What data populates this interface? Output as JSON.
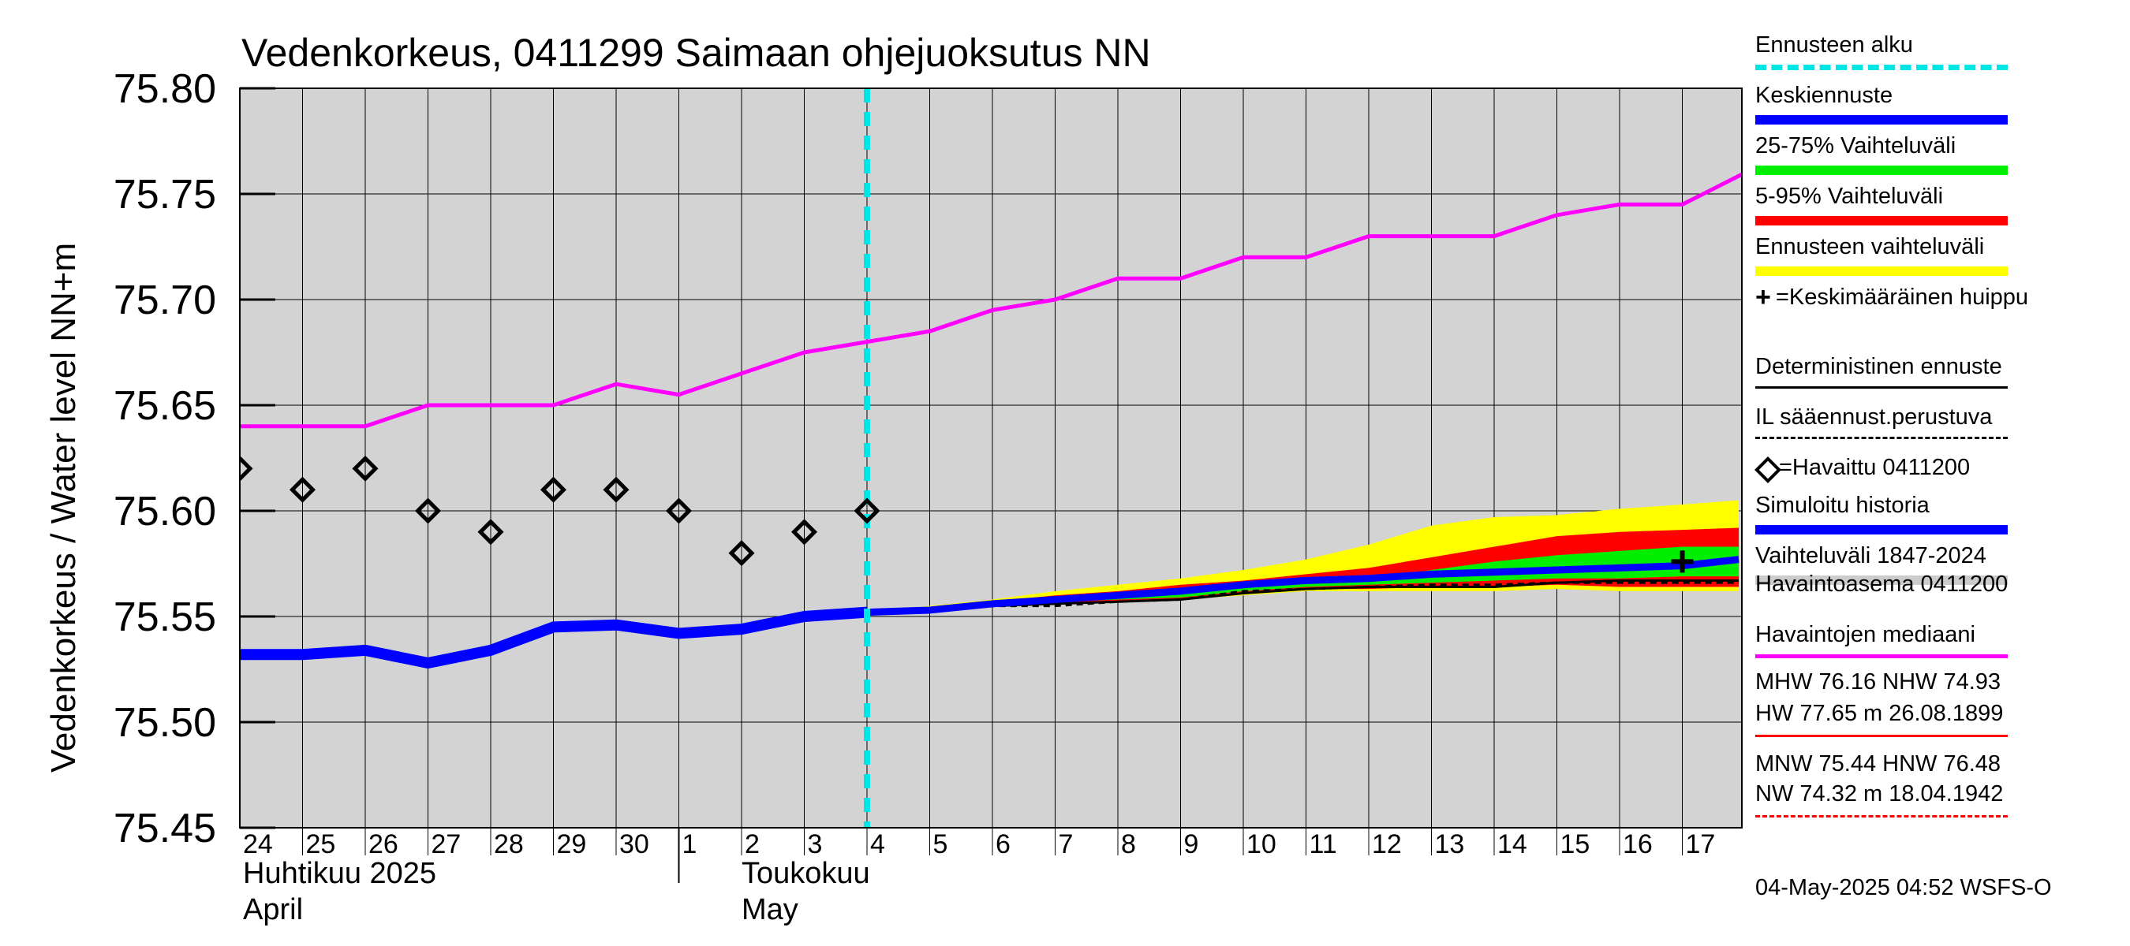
{
  "chart_data": {
    "type": "line",
    "title": "Vedenkorkeus, 0411299 Saimaan ohjejuoksutus NN",
    "ylabel": "Vedenkorkeus / Water level   NN+m",
    "ylim": [
      75.45,
      75.8
    ],
    "yticks": [
      "75.45",
      "75.50",
      "75.55",
      "75.60",
      "75.65",
      "75.70",
      "75.75",
      "75.80"
    ],
    "ytick_values": [
      75.45,
      75.5,
      75.55,
      75.6,
      75.65,
      75.7,
      75.75,
      75.8
    ],
    "x_day_labels": [
      "24",
      "25",
      "26",
      "27",
      "28",
      "29",
      "30",
      "1",
      "2",
      "3",
      "4",
      "5",
      "6",
      "7",
      "8",
      "9",
      "10",
      "11",
      "12",
      "13",
      "14",
      "15",
      "16",
      "17"
    ],
    "month_labels": [
      {
        "fi": "Huhtikuu  2025",
        "en": "April"
      },
      {
        "fi": "Toukokuu",
        "en": "May"
      }
    ],
    "forecast_start_day": 10,
    "median_line": {
      "name": "Havaintojen mediaani",
      "x": [
        0,
        1,
        2,
        3,
        4,
        5,
        6,
        7,
        8,
        9,
        10,
        11,
        12,
        13,
        14,
        15,
        16,
        17,
        18,
        19,
        20,
        21,
        22,
        23,
        24
      ],
      "y": [
        75.64,
        75.64,
        75.64,
        75.65,
        75.65,
        75.65,
        75.66,
        75.655,
        75.665,
        75.675,
        75.68,
        75.685,
        75.695,
        75.7,
        75.71,
        75.71,
        75.72,
        75.72,
        75.73,
        75.73,
        75.73,
        75.74,
        75.745,
        75.745,
        75.76
      ]
    },
    "observed": {
      "name": "Havaittu 0411200",
      "x": [
        0,
        1,
        2,
        3,
        4,
        5,
        6,
        7,
        8,
        9,
        10
      ],
      "y": [
        75.62,
        75.61,
        75.62,
        75.6,
        75.59,
        75.61,
        75.61,
        75.6,
        75.58,
        75.59,
        75.6
      ]
    },
    "simulated_history": {
      "name": "Simuloitu historia",
      "x": [
        0,
        1,
        2,
        3,
        4,
        5,
        6,
        7,
        8,
        9,
        10
      ],
      "y": [
        75.532,
        75.532,
        75.534,
        75.528,
        75.534,
        75.545,
        75.546,
        75.542,
        75.544,
        75.55,
        75.552
      ]
    },
    "forecast_x": [
      10,
      11,
      12,
      13,
      14,
      15,
      16,
      17,
      18,
      19,
      20,
      21,
      22,
      23,
      23.9
    ],
    "band_full": {
      "name": "Ennusteen vaihteluväli",
      "upper": [
        75.552,
        75.555,
        75.558,
        75.562,
        75.565,
        75.568,
        75.572,
        75.577,
        75.584,
        75.593,
        75.597,
        75.598,
        75.601,
        75.603,
        75.605
      ],
      "lower": [
        75.552,
        75.553,
        75.555,
        75.556,
        75.557,
        75.558,
        75.56,
        75.562,
        75.562,
        75.562,
        75.562,
        75.563,
        75.562,
        75.562,
        75.562
      ]
    },
    "band_5_95": {
      "name": "5-95% Vaihteluväli",
      "upper": [
        75.552,
        75.554,
        75.557,
        75.56,
        75.562,
        75.565,
        75.567,
        75.57,
        75.573,
        75.578,
        75.583,
        75.588,
        75.59,
        75.591,
        75.592
      ],
      "lower": [
        75.552,
        75.553,
        75.555,
        75.556,
        75.557,
        75.558,
        75.561,
        75.563,
        75.563,
        75.564,
        75.564,
        75.565,
        75.564,
        75.564,
        75.564
      ]
    },
    "band_25_75": {
      "name": "25-75% Vaihteluväli",
      "upper": [
        75.552,
        75.553,
        75.556,
        75.558,
        75.56,
        75.562,
        75.564,
        75.566,
        75.567,
        75.572,
        75.576,
        75.579,
        75.581,
        75.583,
        75.583
      ],
      "lower": [
        75.552,
        75.553,
        75.555,
        75.557,
        75.558,
        75.559,
        75.562,
        75.564,
        75.565,
        75.566,
        75.567,
        75.568,
        75.568,
        75.569,
        75.569
      ]
    },
    "mean_forecast": {
      "name": "Keskiennuste",
      "y": [
        75.552,
        75.553,
        75.556,
        75.558,
        75.56,
        75.562,
        75.565,
        75.567,
        75.568,
        75.57,
        75.571,
        75.572,
        75.573,
        75.574,
        75.577
      ]
    },
    "deterministic": {
      "name": "Deterministinen ennuste",
      "y": [
        75.552,
        75.553,
        75.555,
        75.556,
        75.557,
        75.558,
        75.561,
        75.563,
        75.564,
        75.564,
        75.564,
        75.566,
        75.567,
        75.567,
        75.567
      ]
    },
    "il_forecast": {
      "name": "IL sääennust.perustuva",
      "y": [
        75.552,
        75.553,
        75.555,
        75.555,
        75.557,
        75.558,
        75.562,
        75.563,
        75.564,
        75.565,
        75.565,
        75.566,
        75.566,
        75.566,
        75.566
      ]
    },
    "mean_peak": {
      "name": "Keskimääräinen huippu",
      "x": 23,
      "y": 75.576
    }
  },
  "legend": [
    {
      "label": "Ennusteen alku",
      "color": "#00e5e5",
      "style": "dashed-thick"
    },
    {
      "label": "Keskiennuste",
      "color": "#0000ff",
      "style": "thick"
    },
    {
      "label": "25-75% Vaihteluväli",
      "color": "#00ee00",
      "style": "thick"
    },
    {
      "label": "5-95% Vaihteluväli",
      "color": "#ff0000",
      "style": "thick"
    },
    {
      "label": "Ennusteen vaihteluväli",
      "color": "#ffff00",
      "style": "thick"
    },
    {
      "label": "=Keskimääräinen huippu",
      "color": "#000000",
      "style": "none",
      "marker": "plus"
    },
    {
      "label": "Deterministinen ennuste",
      "color": "#000000",
      "style": "thin"
    },
    {
      "label": "IL sääennust.perustuva",
      "color": "#000000",
      "style": "dashed-thin"
    },
    {
      "label": "=Havaittu 0411200",
      "color": "#000000",
      "style": "none",
      "marker": "diamond"
    },
    {
      "label": "Simuloitu historia",
      "color": "#0000ff",
      "style": "thick"
    },
    {
      "label": "Vaihteluväli 1847-2024",
      "color": "#cccccc",
      "style": "thick"
    },
    {
      "label": " Havaintoasema 0411200",
      "color": "#cccccc",
      "style": "none"
    },
    {
      "label": "Havaintojen mediaani",
      "color": "#ff00ff",
      "style": "medium"
    }
  ],
  "stats": {
    "line1": "MHW  76.16 NHW  74.93",
    "line2": "HW  77.65 m 26.08.1899",
    "line3": "MNW  75.44 HNW  76.48",
    "line4": "NW  74.32 m 18.04.1942"
  },
  "colors": {
    "plot_bg": "#d3d3d3",
    "yellow": "#ffff00",
    "red": "#ff0000",
    "green": "#00ee00",
    "blue": "#0000ff",
    "magenta": "#ff00ff",
    "cyan": "#00e5e5"
  },
  "footer": "04-May-2025 04:52 WSFS-O"
}
